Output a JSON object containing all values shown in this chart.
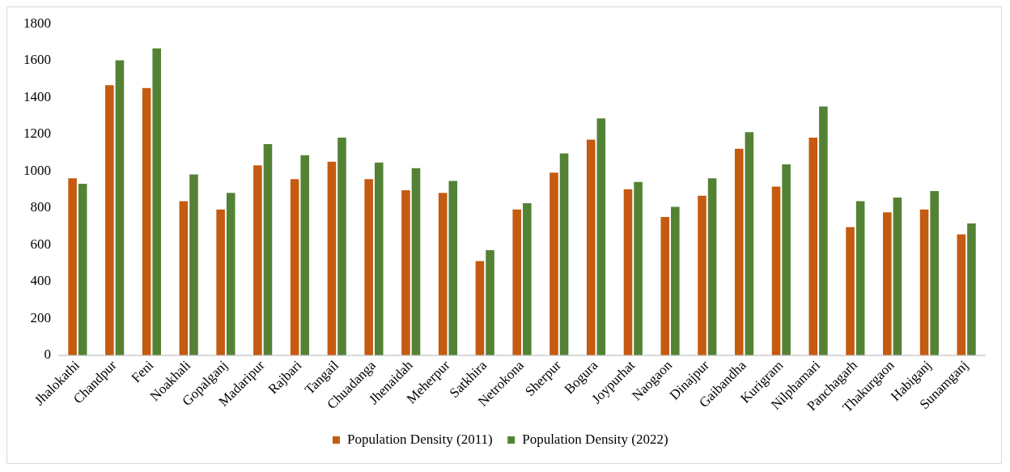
{
  "chart_data": {
    "type": "bar",
    "categories": [
      "Jhalokathi",
      "Chandpur",
      "Feni",
      "Noakhali",
      "Gopalganj",
      "Madaripur",
      "Rajbari",
      "Tangail",
      "Chuadanga",
      "Jhenaidah",
      "Meherpur",
      "Satkhira",
      "Netrokona",
      "Sherpur",
      "Bogura",
      "Joypurhat",
      "Naogaon",
      "Dinajpur",
      "Gaibandha",
      "Kurigram",
      "Nilphamari",
      "Panchagarh",
      "Thakurgaon",
      "Habiganj",
      "Sunamganj"
    ],
    "series": [
      {
        "name": "Population Density (2011)",
        "color": "#c55a11",
        "values": [
          965,
          1470,
          1455,
          840,
          795,
          1035,
          960,
          1055,
          960,
          900,
          885,
          515,
          795,
          995,
          1175,
          905,
          755,
          870,
          1125,
          920,
          1185,
          700,
          780,
          795,
          660
        ]
      },
      {
        "name": "Population Density (2022)",
        "color": "#548235",
        "values": [
          935,
          1605,
          1670,
          985,
          885,
          1150,
          1090,
          1185,
          1050,
          1020,
          950,
          575,
          830,
          1100,
          1290,
          945,
          810,
          965,
          1215,
          1040,
          1355,
          840,
          860,
          895,
          720
        ]
      }
    ],
    "ylim": [
      0,
      1800
    ],
    "yticks": [
      0,
      200,
      400,
      600,
      800,
      1000,
      1200,
      1400,
      1600,
      1800
    ],
    "grid": false,
    "legend": "bottom"
  }
}
